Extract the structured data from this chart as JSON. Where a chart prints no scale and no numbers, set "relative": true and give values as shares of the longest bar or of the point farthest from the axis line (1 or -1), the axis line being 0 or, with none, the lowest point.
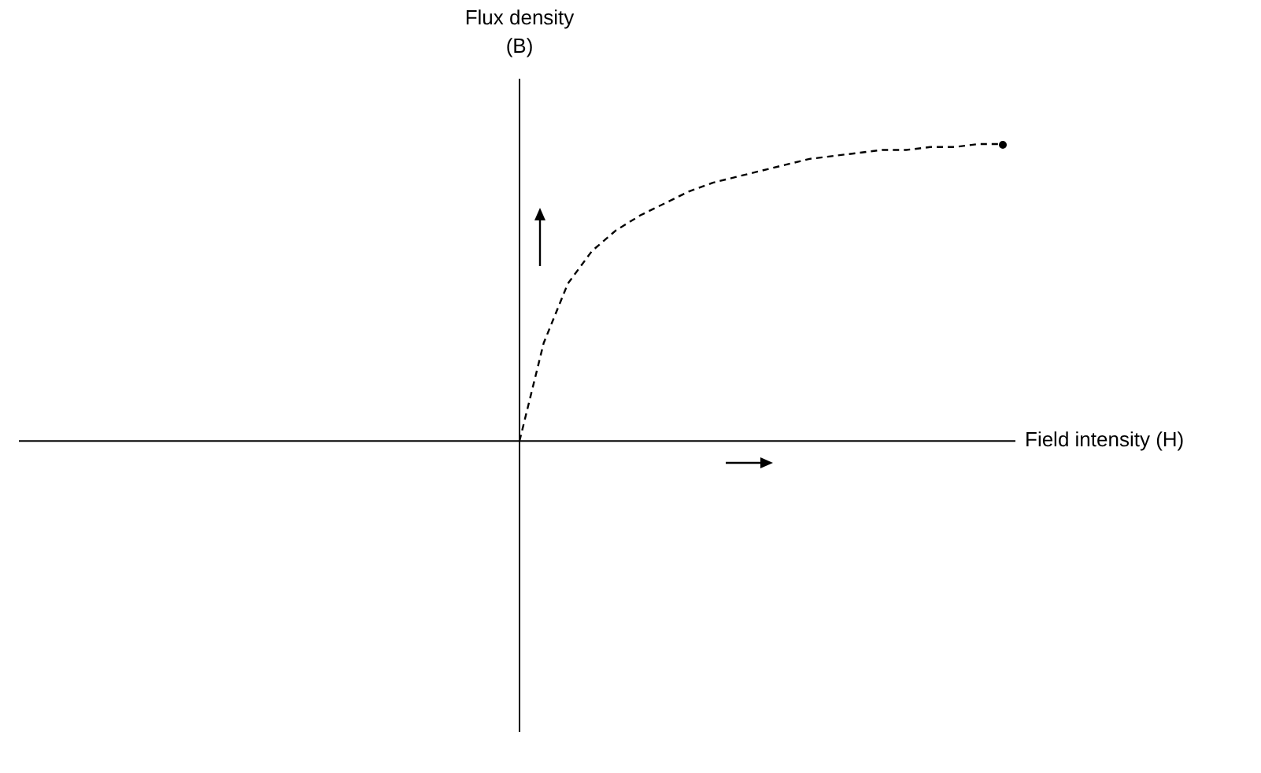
{
  "chart_data": {
    "type": "line",
    "relative": true,
    "xlabel": "Field intensity (H)",
    "ylabel": "Flux density (B)",
    "grid": false,
    "legend": false,
    "line_style": "dashed",
    "marker": "none",
    "categories": [
      null,
      null,
      null,
      null,
      null,
      null,
      null,
      null,
      null,
      null,
      null,
      null,
      null,
      null,
      null,
      null,
      null,
      null,
      null,
      null,
      null
    ],
    "series": [
      {
        "color": "#000000",
        "values": [
          0,
          0.33,
          0.53,
          0.64,
          0.71,
          0.76,
          0.8,
          0.84,
          0.87,
          0.89,
          0.91,
          0.93,
          0.95,
          0.96,
          0.97,
          0.98,
          0.98,
          0.99,
          0.99,
          1,
          1
        ]
      }
    ]
  }
}
